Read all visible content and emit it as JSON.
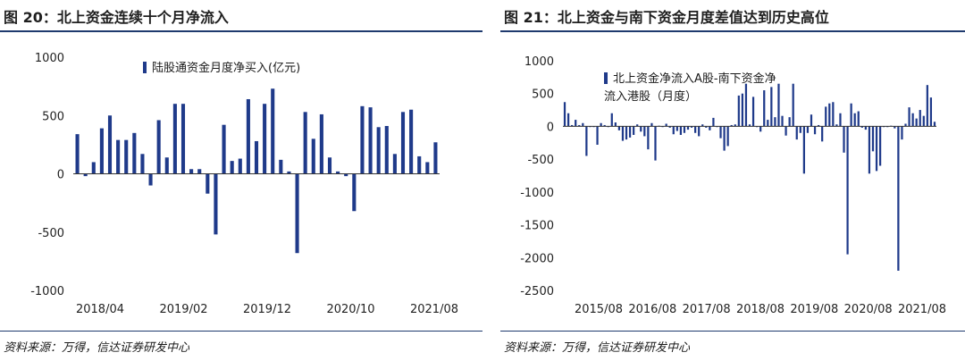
{
  "left": {
    "title": "图 20：北上资金连续十个月净流入",
    "source": "资料来源：万得，信达证券研发中心",
    "chart_data": {
      "type": "bar",
      "title": "北上资金连续十个月净流入",
      "legend": "陆股通资金月度净买入(亿元)",
      "legend_position": "top-left",
      "ylim": [
        -1000,
        1000
      ],
      "yticks": [
        1000,
        500,
        0,
        -500,
        -1000
      ],
      "xtick_labels": [
        "2018/04",
        "2019/02",
        "2019/12",
        "2020/10",
        "2021/08"
      ],
      "color": "#1f3a8a",
      "values": [
        340,
        -20,
        100,
        390,
        500,
        290,
        290,
        350,
        170,
        -100,
        460,
        140,
        600,
        600,
        40,
        40,
        -170,
        -520,
        420,
        110,
        130,
        640,
        280,
        600,
        730,
        120,
        20,
        -680,
        530,
        300,
        510,
        140,
        20,
        -20,
        -320,
        580,
        570,
        400,
        410,
        170,
        530,
        550,
        150,
        100,
        270
      ]
    }
  },
  "right": {
    "title": "图 21：北上资金与南下资金月度差值达到历史高位",
    "source": "资料来源：万得，信达证券研发中心",
    "chart_data": {
      "type": "bar",
      "title": "北上资金与南下资金月度差值达到历史高位",
      "legend": "北上资金净流入A股-南下资金净流入港股（月度）",
      "legend_lines": [
        "北上资金净流入A股-南下资金净",
        "流入港股（月度）"
      ],
      "legend_position": "top-left",
      "ylim": [
        -2500,
        1000
      ],
      "yticks": [
        1000,
        500,
        0,
        -500,
        -1000,
        -1500,
        -2000,
        -2500
      ],
      "xtick_labels": [
        "2015/08",
        "2016/08",
        "2017/08",
        "2018/08",
        "2019/08",
        "2020/08",
        "2021/08"
      ],
      "color": "#1f3a8a",
      "values": [
        370,
        200,
        20,
        100,
        20,
        50,
        -450,
        -10,
        -10,
        -280,
        50,
        20,
        0,
        200,
        60,
        -60,
        -220,
        -200,
        -170,
        -130,
        30,
        -80,
        -150,
        -350,
        50,
        -520,
        10,
        0,
        40,
        -20,
        -120,
        -70,
        -130,
        -100,
        -50,
        -20,
        -100,
        -150,
        30,
        -20,
        -60,
        130,
        -10,
        -180,
        -370,
        -300,
        20,
        30,
        470,
        500,
        650,
        30,
        450,
        0,
        -80,
        550,
        100,
        600,
        140,
        650,
        160,
        -140,
        140,
        650,
        -200,
        -100,
        -720,
        -100,
        180,
        -120,
        20,
        -230,
        300,
        350,
        370,
        30,
        200,
        -400,
        -1950,
        350,
        200,
        230,
        -20,
        -50,
        -720,
        -380,
        -680,
        -600,
        -10,
        -10,
        10,
        -30,
        -2200,
        -200,
        40,
        290,
        200,
        120,
        250,
        160,
        630,
        440,
        70
      ]
    }
  }
}
